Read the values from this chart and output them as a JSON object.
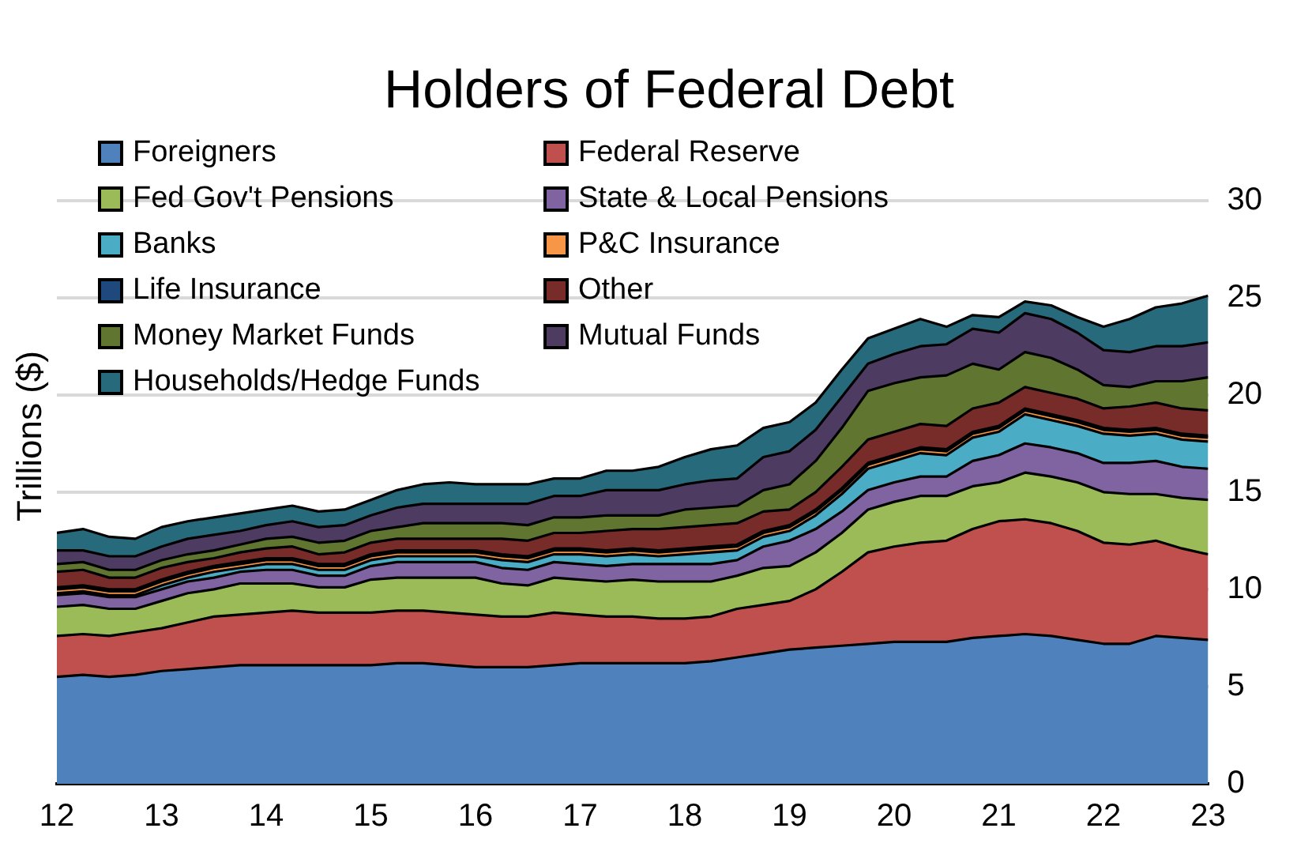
{
  "chart_data": {
    "type": "area",
    "title": "Holders of Federal Debt",
    "ylabel": "Trillions ($)",
    "stacked": true,
    "grid": "y",
    "legend": "top left",
    "xlim": [
      12,
      23
    ],
    "xticks": [
      12,
      13,
      14,
      15,
      16,
      17,
      18,
      19,
      20,
      21,
      22,
      23
    ],
    "ylim": [
      0,
      30
    ],
    "yticks": [
      0,
      5,
      10,
      15,
      20,
      25,
      30
    ],
    "x": [
      12,
      12.25,
      12.5,
      12.75,
      13,
      13.25,
      13.5,
      13.75,
      14,
      14.25,
      14.5,
      14.75,
      15,
      15.25,
      15.5,
      15.75,
      16,
      16.25,
      16.5,
      16.75,
      17,
      17.25,
      17.5,
      17.75,
      18,
      18.25,
      18.5,
      18.75,
      19,
      19.25,
      19.5,
      19.75,
      20,
      20.25,
      20.5,
      20.75,
      21,
      21.25,
      21.5,
      21.75,
      22,
      22.25,
      22.5,
      22.75,
      23
    ],
    "series": [
      {
        "name": "Foreigners",
        "color": "#4f81bd",
        "values": [
          5.5,
          5.6,
          5.5,
          5.6,
          5.8,
          5.9,
          6.0,
          6.1,
          6.1,
          6.1,
          6.1,
          6.1,
          6.1,
          6.2,
          6.2,
          6.1,
          6.0,
          6.0,
          6.0,
          6.1,
          6.2,
          6.2,
          6.2,
          6.2,
          6.2,
          6.3,
          6.5,
          6.7,
          6.9,
          7.0,
          7.1,
          7.2,
          7.3,
          7.3,
          7.3,
          7.5,
          7.6,
          7.7,
          7.6,
          7.4,
          7.2,
          7.2,
          7.6,
          7.5,
          7.4
        ]
      },
      {
        "name": "Federal Reserve",
        "color": "#c0504d",
        "values": [
          2.1,
          2.1,
          2.1,
          2.2,
          2.2,
          2.4,
          2.6,
          2.6,
          2.7,
          2.8,
          2.7,
          2.7,
          2.7,
          2.7,
          2.7,
          2.7,
          2.7,
          2.6,
          2.6,
          2.7,
          2.5,
          2.4,
          2.4,
          2.3,
          2.3,
          2.3,
          2.5,
          2.5,
          2.5,
          3.0,
          3.8,
          4.7,
          4.9,
          5.1,
          5.2,
          5.6,
          5.9,
          5.9,
          5.8,
          5.6,
          5.2,
          5.1,
          4.9,
          4.6,
          4.4
        ]
      },
      {
        "name": "Fed Gov't Pensions",
        "color": "#9bbb59",
        "values": [
          1.5,
          1.5,
          1.4,
          1.2,
          1.4,
          1.5,
          1.4,
          1.6,
          1.5,
          1.4,
          1.3,
          1.3,
          1.7,
          1.7,
          1.7,
          1.8,
          1.9,
          1.7,
          1.6,
          1.8,
          1.8,
          1.8,
          1.9,
          1.9,
          1.9,
          1.8,
          1.7,
          1.9,
          1.8,
          1.9,
          2.0,
          2.2,
          2.3,
          2.4,
          2.3,
          2.2,
          2.0,
          2.4,
          2.4,
          2.5,
          2.6,
          2.6,
          2.4,
          2.6,
          2.8
        ]
      },
      {
        "name": "State & Local Pensions",
        "color": "#8064a2",
        "values": [
          0.6,
          0.6,
          0.6,
          0.6,
          0.6,
          0.6,
          0.6,
          0.6,
          0.7,
          0.7,
          0.6,
          0.6,
          0.7,
          0.8,
          0.8,
          0.8,
          0.8,
          0.8,
          0.8,
          0.8,
          0.8,
          0.8,
          0.8,
          0.9,
          0.9,
          0.9,
          0.8,
          1.1,
          1.3,
          1.2,
          1.1,
          1.0,
          1.0,
          1.0,
          1.0,
          1.3,
          1.4,
          1.5,
          1.5,
          1.5,
          1.5,
          1.6,
          1.7,
          1.6,
          1.6
        ]
      },
      {
        "name": "Banks",
        "color": "#4bacc6",
        "values": [
          0.1,
          0.1,
          0.1,
          0.1,
          0.2,
          0.2,
          0.3,
          0.2,
          0.3,
          0.3,
          0.3,
          0.3,
          0.3,
          0.3,
          0.3,
          0.3,
          0.3,
          0.4,
          0.4,
          0.4,
          0.5,
          0.5,
          0.5,
          0.4,
          0.5,
          0.6,
          0.5,
          0.5,
          0.5,
          0.7,
          0.9,
          1.1,
          1.1,
          1.2,
          1.1,
          1.2,
          1.2,
          1.5,
          1.4,
          1.4,
          1.5,
          1.4,
          1.4,
          1.4,
          1.4
        ]
      },
      {
        "name": "P&C Insurance",
        "color": "#f79646",
        "values": [
          0.2,
          0.2,
          0.2,
          0.2,
          0.2,
          0.2,
          0.2,
          0.2,
          0.2,
          0.2,
          0.2,
          0.2,
          0.2,
          0.2,
          0.2,
          0.2,
          0.2,
          0.2,
          0.2,
          0.2,
          0.2,
          0.2,
          0.2,
          0.2,
          0.2,
          0.2,
          0.2,
          0.2,
          0.2,
          0.2,
          0.2,
          0.2,
          0.2,
          0.2,
          0.2,
          0.2,
          0.2,
          0.2,
          0.2,
          0.2,
          0.2,
          0.2,
          0.2,
          0.2,
          0.2
        ]
      },
      {
        "name": "Life Insurance",
        "color": "#1f497d",
        "values": [
          0.1,
          0.1,
          0.1,
          0.1,
          0.1,
          0.1,
          0.1,
          0.1,
          0.1,
          0.1,
          0.1,
          0.1,
          0.1,
          0.1,
          0.1,
          0.1,
          0.1,
          0.1,
          0.1,
          0.1,
          0.1,
          0.1,
          0.1,
          0.1,
          0.1,
          0.1,
          0.1,
          0.1,
          0.1,
          0.1,
          0.1,
          0.1,
          0.1,
          0.1,
          0.1,
          0.1,
          0.1,
          0.1,
          0.1,
          0.1,
          0.1,
          0.1,
          0.1,
          0.1,
          0.1
        ]
      },
      {
        "name": "Other",
        "color": "#772c2a",
        "values": [
          0.8,
          0.8,
          0.6,
          0.6,
          0.6,
          0.5,
          0.4,
          0.5,
          0.5,
          0.6,
          0.5,
          0.6,
          0.6,
          0.6,
          0.6,
          0.6,
          0.6,
          0.8,
          0.8,
          0.8,
          0.8,
          1.0,
          1.0,
          1.1,
          1.1,
          1.1,
          1.1,
          1.0,
          0.8,
          0.9,
          1.1,
          1.2,
          1.2,
          1.2,
          1.2,
          1.2,
          1.2,
          1.1,
          1.1,
          1.1,
          1.0,
          1.2,
          1.3,
          1.3,
          1.3
        ]
      },
      {
        "name": "Money Market Funds",
        "color": "#5f7530",
        "values": [
          0.4,
          0.4,
          0.4,
          0.4,
          0.4,
          0.4,
          0.4,
          0.4,
          0.5,
          0.5,
          0.6,
          0.6,
          0.6,
          0.6,
          0.8,
          0.8,
          0.8,
          0.8,
          0.8,
          0.8,
          0.8,
          0.8,
          0.7,
          0.7,
          0.9,
          0.9,
          0.9,
          1.1,
          1.3,
          1.6,
          2.0,
          2.5,
          2.5,
          2.4,
          2.6,
          2.3,
          1.7,
          1.8,
          1.8,
          1.5,
          1.2,
          1.0,
          1.1,
          1.4,
          1.7
        ]
      },
      {
        "name": "Mutual Funds",
        "color": "#4d3b62",
        "values": [
          0.7,
          0.6,
          0.7,
          0.7,
          0.7,
          0.8,
          0.8,
          0.7,
          0.7,
          0.8,
          0.8,
          0.8,
          0.8,
          1.0,
          1.0,
          1.0,
          1.0,
          1.0,
          1.1,
          1.1,
          1.1,
          1.3,
          1.3,
          1.3,
          1.3,
          1.4,
          1.4,
          1.7,
          1.7,
          1.6,
          1.6,
          1.4,
          1.5,
          1.6,
          1.6,
          1.8,
          1.9,
          2.0,
          2.0,
          1.9,
          1.8,
          1.8,
          1.8,
          1.8,
          1.8
        ]
      },
      {
        "name": "Households/Hedge Funds",
        "color": "#276a7c",
        "values": [
          0.9,
          1.1,
          1.0,
          0.9,
          1.0,
          0.9,
          0.9,
          0.9,
          0.8,
          0.8,
          0.8,
          0.8,
          0.8,
          0.9,
          1.0,
          1.1,
          1.0,
          1.0,
          1.0,
          0.9,
          0.9,
          1.0,
          1.0,
          1.2,
          1.4,
          1.6,
          1.7,
          1.5,
          1.5,
          1.4,
          1.4,
          1.3,
          1.3,
          1.4,
          0.9,
          0.7,
          0.8,
          0.6,
          0.7,
          0.8,
          1.2,
          1.7,
          2.0,
          2.2,
          2.4
        ]
      }
    ]
  }
}
